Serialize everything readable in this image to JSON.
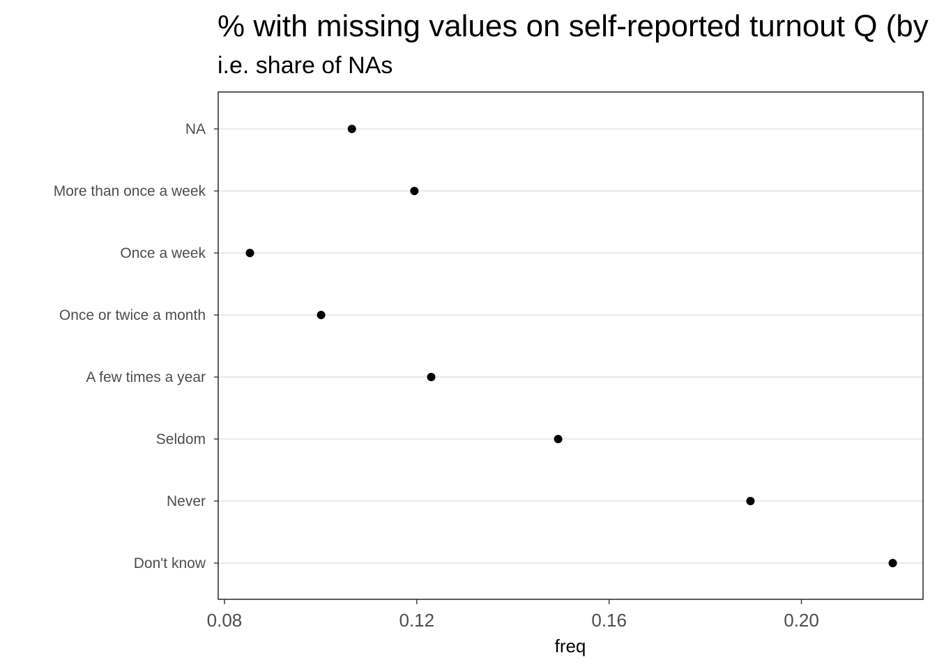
{
  "chart_data": {
    "type": "scatter",
    "title": "% with missing values on self-reported turnout Q (by",
    "subtitle": "i.e. share of NAs",
    "xlabel": "freq",
    "ylabel": "",
    "categories": [
      "NA",
      "More than once a week",
      "Once a week",
      "Once or twice a month",
      "A few times a year",
      "Seldom",
      "Never",
      "Don't know"
    ],
    "values": [
      0.1065,
      0.1195,
      0.0853,
      0.1001,
      0.123,
      0.1494,
      0.1894,
      0.219
    ],
    "xlim": [
      0.0787,
      0.2253
    ],
    "xticks": [
      0.08,
      0.12,
      0.16,
      0.2
    ],
    "xtick_labels": [
      "0.08",
      "0.12",
      "0.16",
      "0.20"
    ],
    "grid": "major y only",
    "legend": "none",
    "colors": {
      "point": "#000000",
      "grid": "#ebebeb",
      "border": "#333333"
    }
  }
}
